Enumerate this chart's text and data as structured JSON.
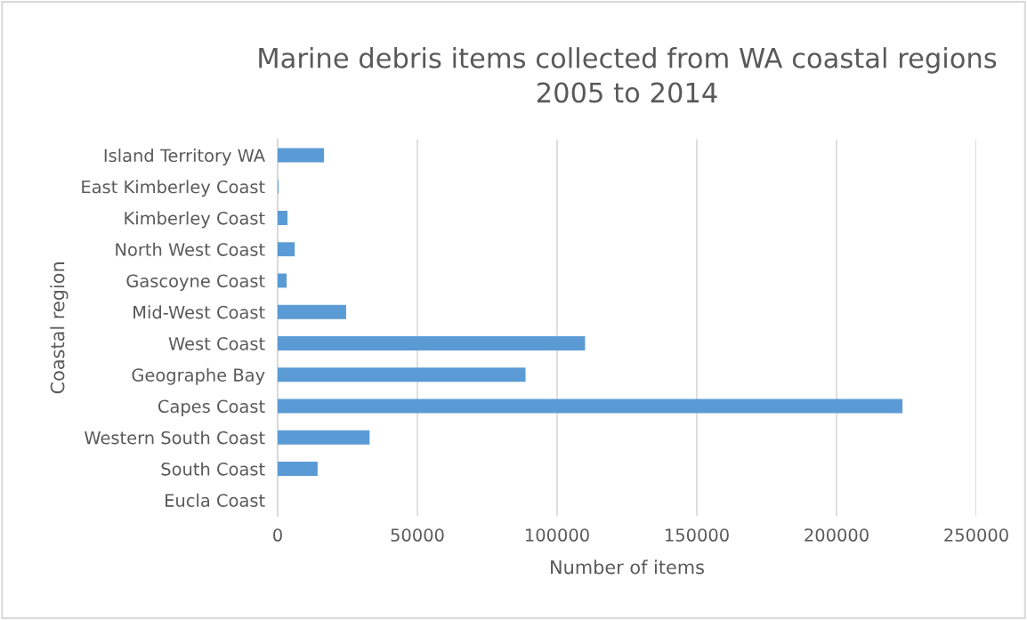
{
  "chart_data": {
    "type": "bar",
    "orientation": "horizontal",
    "title": "Marine debris items collected from WA coastal regions\n2005 to 2014",
    "xlabel": "Number of items",
    "ylabel": "Coastal region",
    "categories": [
      "Island Territory WA",
      "East Kimberley Coast",
      "Kimberley Coast",
      "North West Coast",
      "Gascoyne Coast",
      "Mid-West Coast",
      "West Coast",
      "Geographe Bay",
      "Capes Coast",
      "Western South Coast",
      "South Coast",
      "Eucla Coast"
    ],
    "values": [
      16600,
      300,
      3500,
      6100,
      3200,
      24500,
      110000,
      88700,
      223600,
      32900,
      14300,
      0
    ],
    "color": "#5b9bd5",
    "xlim": [
      0,
      250000
    ],
    "xticks": [
      0,
      50000,
      100000,
      150000,
      200000,
      250000
    ],
    "grid": "x",
    "legend": false
  }
}
